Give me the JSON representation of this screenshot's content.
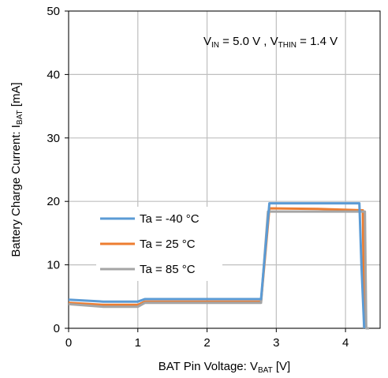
{
  "chart_data": {
    "type": "line",
    "xlabel": {
      "main": "BAT Pin Voltage: V",
      "sub": "BAT",
      "tail": " [V]"
    },
    "ylabel": {
      "main": "Battery Charge Current: I",
      "sub": "BAT",
      "tail": " [mA]"
    },
    "xlim": [
      0,
      4.5
    ],
    "ylim": [
      0,
      50
    ],
    "xticks": [
      "0",
      "1",
      "2",
      "3",
      "4"
    ],
    "yticks": [
      "0",
      "10",
      "20",
      "30",
      "40",
      "50"
    ],
    "grid": true,
    "legend_position": "center-left",
    "annotation": {
      "parts": [
        {
          "text": "V",
          "sub": false
        },
        {
          "text": "IN",
          "sub": true
        },
        {
          "text": " = 5.0 V , V",
          "sub": false
        },
        {
          "text": "THIN",
          "sub": true
        },
        {
          "text": " = 1.4 V",
          "sub": false
        }
      ]
    },
    "series": [
      {
        "name": "Ta =  -40 °C",
        "color": "#5b9bd5",
        "points": [
          [
            0,
            4.5
          ],
          [
            0.5,
            4.2
          ],
          [
            1.0,
            4.2
          ],
          [
            1.1,
            4.6
          ],
          [
            2.78,
            4.6
          ],
          [
            2.9,
            19.7
          ],
          [
            4.2,
            19.7
          ],
          [
            4.23,
            10
          ],
          [
            4.27,
            0
          ]
        ]
      },
      {
        "name": "Ta =  25 °C",
        "color": "#ed7d31",
        "points": [
          [
            0,
            4.0
          ],
          [
            0.5,
            3.7
          ],
          [
            1.0,
            3.7
          ],
          [
            1.1,
            4.2
          ],
          [
            2.78,
            4.2
          ],
          [
            2.9,
            18.9
          ],
          [
            3.6,
            18.8
          ],
          [
            4.25,
            18.6
          ],
          [
            4.27,
            0
          ]
        ]
      },
      {
        "name": "Ta =  85 °C",
        "color": "#a5a5a5",
        "points": [
          [
            0,
            3.8
          ],
          [
            0.5,
            3.4
          ],
          [
            1.0,
            3.4
          ],
          [
            1.1,
            4.0
          ],
          [
            2.78,
            4.0
          ],
          [
            2.88,
            18.4
          ],
          [
            4.28,
            18.4
          ],
          [
            4.3,
            0
          ],
          [
            4.34,
            0
          ]
        ]
      }
    ]
  }
}
